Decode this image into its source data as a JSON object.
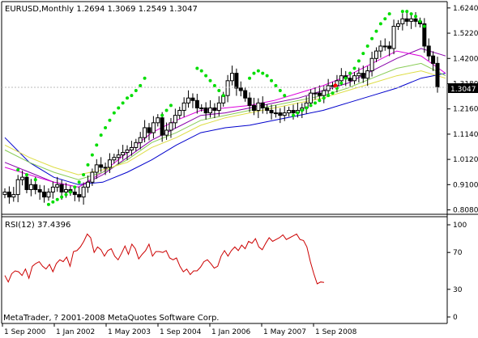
{
  "header": {
    "text": "EURUSD,Monthly  1.2694 1.3069 1.2549 1.3047"
  },
  "rsi_header": {
    "text": "RSI(12) 37.4396"
  },
  "copyright": {
    "text": "MetaTrader, ? 2001-2008 MetaQuotes Software Corp."
  },
  "price_marker": {
    "text": "1.3047"
  },
  "colors": {
    "background": "#ffffff",
    "bull_candle": "#ffffff",
    "bear_candle": "#000000",
    "sar": "#00dd00",
    "rsi": "#cc0000",
    "ma_blue": "#0000cc",
    "ma_purple": "#8800aa",
    "ma_magenta": "#dd00dd",
    "ma_green": "#88cc55",
    "ma_yellow": "#dddd44",
    "red_dot": "#ff0000"
  },
  "chart_data": [
    {
      "type": "candlestick",
      "symbol": "EURUSD",
      "timeframe": "Monthly",
      "last_bar": {
        "open": 1.2694,
        "high": 1.3069,
        "low": 1.2549,
        "close": 1.3047
      },
      "y_ticks": [
        "1.6240",
        "1.5220",
        "1.4200",
        "1.3180",
        "1.2160",
        "1.1140",
        "1.0120",
        "0.9100",
        "0.8080"
      ],
      "ylim": [
        0.8,
        1.63
      ],
      "x_ticks": [
        "1 Sep 2000",
        "1 Jan 2002",
        "1 May 2003",
        "1 Sep 2004",
        "1 Jan 2006",
        "1 May 2007",
        "1 Sep 2008"
      ],
      "close_series": [
        0.88,
        0.86,
        0.87,
        0.93,
        0.94,
        0.89,
        0.91,
        0.89,
        0.88,
        0.86,
        0.88,
        0.9,
        0.91,
        0.88,
        0.89,
        0.88,
        0.87,
        0.86,
        0.9,
        0.92,
        0.96,
        0.99,
        0.98,
        0.98,
        1.01,
        1.02,
        1.03,
        1.04,
        1.05,
        1.06,
        1.08,
        1.1,
        1.14,
        1.12,
        1.16,
        1.18,
        1.11,
        1.13,
        1.16,
        1.19,
        1.21,
        1.24,
        1.26,
        1.25,
        1.22,
        1.22,
        1.2,
        1.22,
        1.21,
        1.24,
        1.27,
        1.33,
        1.36,
        1.3,
        1.29,
        1.26,
        1.23,
        1.21,
        1.24,
        1.22,
        1.21,
        1.2,
        1.2,
        1.19,
        1.2,
        1.21,
        1.2,
        1.21,
        1.22,
        1.24,
        1.28,
        1.28,
        1.27,
        1.29,
        1.31,
        1.31,
        1.33,
        1.35,
        1.34,
        1.33,
        1.35,
        1.36,
        1.34,
        1.37,
        1.42,
        1.45,
        1.47,
        1.47,
        1.46,
        1.55,
        1.56,
        1.58,
        1.57,
        1.58,
        1.57,
        1.56,
        1.47,
        1.43,
        1.4,
        1.3047
      ],
      "moving_averages": [
        {
          "name": "blue",
          "values": [
            1.1,
            1.0,
            0.94,
            0.91,
            0.92,
            0.96,
            1.01,
            1.07,
            1.12,
            1.14,
            1.15,
            1.17,
            1.19,
            1.21,
            1.24,
            1.27,
            1.3,
            1.34,
            1.36
          ]
        },
        {
          "name": "purple",
          "values": [
            1.0,
            0.96,
            0.92,
            0.9,
            0.95,
            1.02,
            1.09,
            1.14,
            1.19,
            1.2,
            1.22,
            1.24,
            1.26,
            1.29,
            1.32,
            1.37,
            1.42,
            1.46,
            1.43
          ]
        },
        {
          "name": "magenta",
          "values": [
            0.98,
            0.95,
            0.92,
            0.9,
            0.96,
            1.04,
            1.12,
            1.17,
            1.21,
            1.22,
            1.23,
            1.25,
            1.28,
            1.31,
            1.35,
            1.4,
            1.45,
            1.43,
            1.36
          ]
        },
        {
          "name": "green",
          "values": [
            1.05,
            1.0,
            0.96,
            0.93,
            0.96,
            1.01,
            1.08,
            1.12,
            1.17,
            1.19,
            1.21,
            1.23,
            1.25,
            1.27,
            1.3,
            1.34,
            1.38,
            1.4,
            1.35
          ]
        },
        {
          "name": "yellow",
          "values": [
            1.07,
            1.02,
            0.98,
            0.95,
            0.97,
            1.0,
            1.06,
            1.1,
            1.15,
            1.18,
            1.2,
            1.22,
            1.24,
            1.26,
            1.29,
            1.32,
            1.35,
            1.37,
            1.34
          ]
        }
      ],
      "sar_points": [
        {
          "i": 3,
          "v": 0.97
        },
        {
          "i": 5,
          "v": 0.95
        },
        {
          "i": 7,
          "v": 0.93
        },
        {
          "i": 10,
          "v": 0.83
        },
        {
          "i": 11,
          "v": 0.84
        },
        {
          "i": 12,
          "v": 0.85
        },
        {
          "i": 13,
          "v": 0.86
        },
        {
          "i": 14,
          "v": 0.87
        },
        {
          "i": 15,
          "v": 0.88
        },
        {
          "i": 16,
          "v": 0.9
        },
        {
          "i": 17,
          "v": 0.92
        },
        {
          "i": 18,
          "v": 0.95
        },
        {
          "i": 19,
          "v": 0.99
        },
        {
          "i": 20,
          "v": 1.03
        },
        {
          "i": 21,
          "v": 1.07
        },
        {
          "i": 22,
          "v": 1.11
        },
        {
          "i": 23,
          "v": 1.14
        },
        {
          "i": 24,
          "v": 1.17
        },
        {
          "i": 25,
          "v": 1.2
        },
        {
          "i": 26,
          "v": 1.22
        },
        {
          "i": 27,
          "v": 1.24
        },
        {
          "i": 28,
          "v": 1.26
        },
        {
          "i": 29,
          "v": 1.27
        },
        {
          "i": 30,
          "v": 1.29
        },
        {
          "i": 31,
          "v": 1.31
        },
        {
          "i": 32,
          "v": 1.34
        },
        {
          "i": 36,
          "v": 1.19
        },
        {
          "i": 37,
          "v": 1.21
        },
        {
          "i": 38,
          "v": 1.23
        },
        {
          "i": 44,
          "v": 1.38
        },
        {
          "i": 45,
          "v": 1.37
        },
        {
          "i": 46,
          "v": 1.35
        },
        {
          "i": 47,
          "v": 1.33
        },
        {
          "i": 48,
          "v": 1.31
        },
        {
          "i": 49,
          "v": 1.29
        },
        {
          "i": 50,
          "v": 1.27
        },
        {
          "i": 56,
          "v": 1.34
        },
        {
          "i": 57,
          "v": 1.36
        },
        {
          "i": 58,
          "v": 1.37
        },
        {
          "i": 59,
          "v": 1.36
        },
        {
          "i": 60,
          "v": 1.35
        },
        {
          "i": 61,
          "v": 1.33
        },
        {
          "i": 62,
          "v": 1.31
        },
        {
          "i": 63,
          "v": 1.29
        },
        {
          "i": 64,
          "v": 1.27
        },
        {
          "i": 66,
          "v": 1.19
        },
        {
          "i": 67,
          "v": 1.2
        },
        {
          "i": 68,
          "v": 1.21
        },
        {
          "i": 69,
          "v": 1.22
        },
        {
          "i": 70,
          "v": 1.23
        },
        {
          "i": 71,
          "v": 1.24
        },
        {
          "i": 72,
          "v": 1.25
        },
        {
          "i": 73,
          "v": 1.26
        },
        {
          "i": 74,
          "v": 1.27
        },
        {
          "i": 75,
          "v": 1.28
        },
        {
          "i": 76,
          "v": 1.3
        },
        {
          "i": 77,
          "v": 1.32
        },
        {
          "i": 78,
          "v": 1.34
        },
        {
          "i": 79,
          "v": 1.36
        },
        {
          "i": 80,
          "v": 1.38
        },
        {
          "i": 81,
          "v": 1.41
        },
        {
          "i": 82,
          "v": 1.44
        },
        {
          "i": 83,
          "v": 1.47
        },
        {
          "i": 84,
          "v": 1.5
        },
        {
          "i": 85,
          "v": 1.53
        },
        {
          "i": 86,
          "v": 1.56
        },
        {
          "i": 87,
          "v": 1.58
        },
        {
          "i": 88,
          "v": 1.6
        },
        {
          "i": 91,
          "v": 1.61
        },
        {
          "i": 92,
          "v": 1.61
        },
        {
          "i": 93,
          "v": 1.6
        },
        {
          "i": 94,
          "v": 1.59
        },
        {
          "i": 95,
          "v": 1.57
        },
        {
          "i": 96,
          "v": 1.55
        }
      ],
      "red_dot": {
        "i": 102,
        "v": 1.31
      }
    },
    {
      "type": "line",
      "name": "RSI(12)",
      "last_value": 37.4396,
      "y_ticks": [
        "100",
        "70",
        "30",
        "0"
      ],
      "ylim": [
        0,
        100
      ],
      "values": [
        45,
        38,
        47,
        50,
        49,
        45,
        52,
        42,
        55,
        58,
        60,
        55,
        52,
        57,
        49,
        58,
        62,
        60,
        65,
        55,
        71,
        72,
        76,
        82,
        90,
        86,
        70,
        76,
        73,
        66,
        72,
        74,
        66,
        62,
        69,
        77,
        68,
        79,
        74,
        63,
        68,
        72,
        79,
        66,
        71,
        71,
        70,
        72,
        64,
        62,
        64,
        55,
        49,
        52,
        46,
        50,
        50,
        54,
        60,
        62,
        58,
        53,
        55,
        66,
        72,
        66,
        72,
        76,
        72,
        78,
        74,
        82,
        80,
        85,
        76,
        73,
        80,
        86,
        82,
        84,
        86,
        89,
        84,
        86,
        88,
        90,
        84,
        83,
        76,
        60,
        47,
        36,
        38,
        37.4396
      ]
    }
  ]
}
